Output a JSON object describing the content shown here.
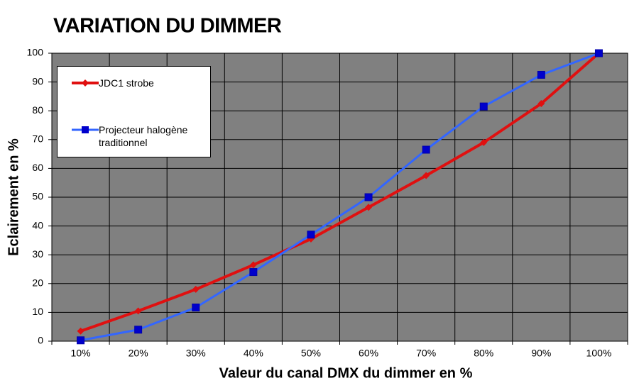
{
  "chart_data": {
    "type": "line",
    "title": "VARIATION DU DIMMER",
    "x_label": "Valeur du canal DMX du dimmer en %",
    "y_label": "Eclairement en %",
    "categories": [
      "10%",
      "20%",
      "30%",
      "40%",
      "50%",
      "60%",
      "70%",
      "80%",
      "90%",
      "100%"
    ],
    "series": [
      {
        "name": "JDC1 strobe",
        "color": "#e01010",
        "marker": "diamond",
        "values": [
          3.5,
          10.5,
          18,
          26.5,
          35.5,
          46.5,
          57.5,
          69,
          82.5,
          100
        ]
      },
      {
        "name": "Projecteur halogène traditionnel",
        "color": "#3366ff",
        "marker": "square",
        "values": [
          0.3,
          4,
          11.7,
          24,
          37,
          50,
          66.5,
          81.5,
          92.5,
          100
        ]
      }
    ],
    "ylim": [
      0,
      100
    ],
    "yticks": [
      0,
      10,
      20,
      30,
      40,
      50,
      60,
      70,
      80,
      90,
      100
    ],
    "grid": true,
    "plot_background": "#808080"
  }
}
